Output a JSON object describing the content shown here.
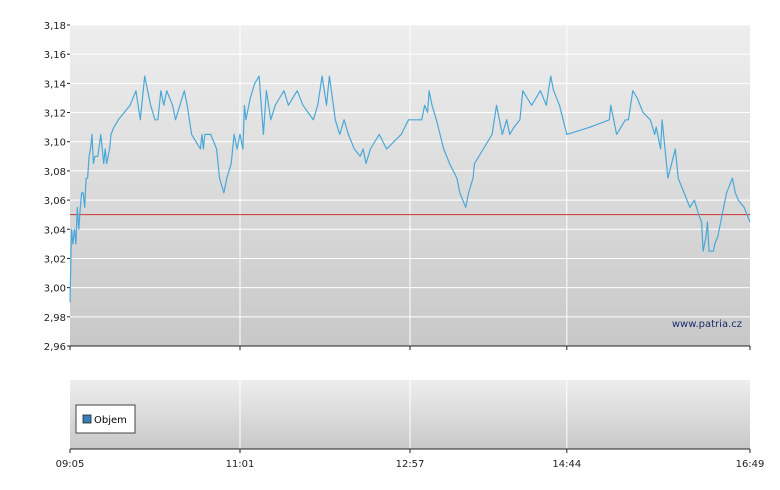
{
  "chart_data": [
    {
      "type": "line",
      "title": "",
      "xlabel": "",
      "ylabel": "",
      "ylim": [
        2.96,
        3.18
      ],
      "yticks": [
        "3,18",
        "3,16",
        "3,14",
        "3,12",
        "3,10",
        "3,08",
        "3,06",
        "3,04",
        "3,02",
        "3,00",
        "2,98",
        "2,96"
      ],
      "yticks_values": [
        3.18,
        3.16,
        3.14,
        3.12,
        3.1,
        3.08,
        3.06,
        3.04,
        3.02,
        3.0,
        2.98,
        2.96
      ],
      "xlim": [
        "09:05",
        "16:49"
      ],
      "xticks": [
        "09:05",
        "11:01",
        "12:57",
        "14:44",
        "16:49"
      ],
      "grid": true,
      "reference_line": {
        "value": 3.05,
        "color": "#cc3333"
      },
      "watermark": "www.patria.cz",
      "series": [
        {
          "color": "#4aa8d8",
          "points": [
            [
              "09:05",
              2.99
            ],
            [
              "09:06",
              3.04
            ],
            [
              "09:07",
              3.03
            ],
            [
              "09:08",
              3.04
            ],
            [
              "09:09",
              3.03
            ],
            [
              "09:10",
              3.055
            ],
            [
              "09:11",
              3.04
            ],
            [
              "09:12",
              3.055
            ],
            [
              "09:13",
              3.065
            ],
            [
              "09:14",
              3.065
            ],
            [
              "09:15",
              3.055
            ],
            [
              "09:16",
              3.075
            ],
            [
              "09:17",
              3.075
            ],
            [
              "09:18",
              3.09
            ],
            [
              "09:19",
              3.095
            ],
            [
              "09:20",
              3.105
            ],
            [
              "09:21",
              3.085
            ],
            [
              "09:22",
              3.09
            ],
            [
              "09:24",
              3.09
            ],
            [
              "09:26",
              3.105
            ],
            [
              "09:28",
              3.085
            ],
            [
              "09:29",
              3.095
            ],
            [
              "09:30",
              3.085
            ],
            [
              "09:32",
              3.095
            ],
            [
              "09:33",
              3.105
            ],
            [
              "09:35",
              3.11
            ],
            [
              "09:38",
              3.115
            ],
            [
              "09:42",
              3.12
            ],
            [
              "09:46",
              3.125
            ],
            [
              "09:50",
              3.135
            ],
            [
              "09:53",
              3.115
            ],
            [
              "09:56",
              3.145
            ],
            [
              "10:00",
              3.125
            ],
            [
              "10:03",
              3.115
            ],
            [
              "10:05",
              3.115
            ],
            [
              "10:07",
              3.135
            ],
            [
              "10:09",
              3.125
            ],
            [
              "10:11",
              3.135
            ],
            [
              "10:15",
              3.125
            ],
            [
              "10:17",
              3.115
            ],
            [
              "10:20",
              3.125
            ],
            [
              "10:23",
              3.135
            ],
            [
              "10:25",
              3.125
            ],
            [
              "10:28",
              3.105
            ],
            [
              "10:31",
              3.1
            ],
            [
              "10:34",
              3.095
            ],
            [
              "10:35",
              3.105
            ],
            [
              "10:36",
              3.095
            ],
            [
              "10:37",
              3.105
            ],
            [
              "10:41",
              3.105
            ],
            [
              "10:45",
              3.095
            ],
            [
              "10:47",
              3.075
            ],
            [
              "10:50",
              3.065
            ],
            [
              "10:52",
              3.075
            ],
            [
              "10:55",
              3.085
            ],
            [
              "10:57",
              3.105
            ],
            [
              "10:59",
              3.095
            ],
            [
              "11:01",
              3.105
            ],
            [
              "11:03",
              3.095
            ],
            [
              "11:04",
              3.125
            ],
            [
              "11:05",
              3.115
            ],
            [
              "11:08",
              3.13
            ],
            [
              "11:11",
              3.14
            ],
            [
              "11:14",
              3.145
            ],
            [
              "11:17",
              3.105
            ],
            [
              "11:19",
              3.135
            ],
            [
              "11:22",
              3.115
            ],
            [
              "11:25",
              3.125
            ],
            [
              "11:28",
              3.13
            ],
            [
              "11:31",
              3.135
            ],
            [
              "11:34",
              3.125
            ],
            [
              "11:40",
              3.135
            ],
            [
              "11:44",
              3.125
            ],
            [
              "11:51",
              3.115
            ],
            [
              "11:54",
              3.125
            ],
            [
              "11:57",
              3.145
            ],
            [
              "12:00",
              3.125
            ],
            [
              "12:02",
              3.145
            ],
            [
              "12:06",
              3.115
            ],
            [
              "12:09",
              3.105
            ],
            [
              "12:12",
              3.115
            ],
            [
              "12:15",
              3.105
            ],
            [
              "12:19",
              3.095
            ],
            [
              "12:23",
              3.09
            ],
            [
              "12:25",
              3.095
            ],
            [
              "12:27",
              3.085
            ],
            [
              "12:30",
              3.095
            ],
            [
              "12:36",
              3.105
            ],
            [
              "12:41",
              3.095
            ],
            [
              "12:46",
              3.1
            ],
            [
              "12:51",
              3.105
            ],
            [
              "12:56",
              3.115
            ],
            [
              "13:00",
              3.115
            ],
            [
              "13:05",
              3.115
            ],
            [
              "13:07",
              3.125
            ],
            [
              "13:09",
              3.12
            ],
            [
              "13:10",
              3.135
            ],
            [
              "13:12",
              3.125
            ],
            [
              "13:15",
              3.115
            ],
            [
              "13:20",
              3.095
            ],
            [
              "13:24",
              3.085
            ],
            [
              "13:29",
              3.075
            ],
            [
              "13:31",
              3.065
            ],
            [
              "13:35",
              3.055
            ],
            [
              "13:37",
              3.065
            ],
            [
              "13:40",
              3.075
            ],
            [
              "13:41",
              3.085
            ],
            [
              "13:47",
              3.095
            ],
            [
              "13:53",
              3.105
            ],
            [
              "13:56",
              3.125
            ],
            [
              "13:58",
              3.115
            ],
            [
              "14:00",
              3.105
            ],
            [
              "14:03",
              3.115
            ],
            [
              "14:05",
              3.105
            ],
            [
              "14:08",
              3.11
            ],
            [
              "14:12",
              3.115
            ],
            [
              "14:14",
              3.135
            ],
            [
              "14:17",
              3.13
            ],
            [
              "14:20",
              3.125
            ],
            [
              "14:23",
              3.13
            ],
            [
              "14:26",
              3.135
            ],
            [
              "14:30",
              3.125
            ],
            [
              "14:33",
              3.145
            ],
            [
              "14:35",
              3.135
            ],
            [
              "14:39",
              3.125
            ],
            [
              "14:44",
              3.105
            ],
            [
              "15:00",
              3.11
            ],
            [
              "15:13",
              3.115
            ],
            [
              "15:14",
              3.125
            ],
            [
              "15:16",
              3.115
            ],
            [
              "15:18",
              3.105
            ],
            [
              "15:24",
              3.115
            ],
            [
              "15:26",
              3.115
            ],
            [
              "15:29",
              3.135
            ],
            [
              "15:32",
              3.13
            ],
            [
              "15:36",
              3.12
            ],
            [
              "15:41",
              3.115
            ],
            [
              "15:44",
              3.105
            ],
            [
              "15:45",
              3.11
            ],
            [
              "15:48",
              3.095
            ],
            [
              "15:49",
              3.115
            ],
            [
              "15:53",
              3.075
            ],
            [
              "15:58",
              3.095
            ],
            [
              "16:00",
              3.075
            ],
            [
              "16:08",
              3.055
            ],
            [
              "16:11",
              3.06
            ],
            [
              "16:14",
              3.05
            ],
            [
              "16:16",
              3.045
            ],
            [
              "16:17",
              3.025
            ],
            [
              "16:19",
              3.035
            ],
            [
              "16:20",
              3.045
            ],
            [
              "16:21",
              3.025
            ],
            [
              "16:24",
              3.025
            ],
            [
              "16:25",
              3.03
            ],
            [
              "16:27",
              3.035
            ],
            [
              "16:29",
              3.045
            ],
            [
              "16:31",
              3.055
            ],
            [
              "16:33",
              3.065
            ],
            [
              "16:35",
              3.07
            ],
            [
              "16:37",
              3.075
            ],
            [
              "16:39",
              3.065
            ],
            [
              "16:41",
              3.06
            ],
            [
              "16:45",
              3.055
            ],
            [
              "16:49",
              3.045
            ]
          ]
        }
      ]
    },
    {
      "type": "bar",
      "title": "",
      "xlim": [
        "09:05",
        "16:49"
      ],
      "xticks": [
        "09:05",
        "11:01",
        "12:57",
        "14:44",
        "16:49"
      ],
      "grid": true,
      "legend": {
        "position": "left",
        "entries": [
          {
            "label": "Objem",
            "color": "#3a7fb5"
          }
        ]
      },
      "values": []
    }
  ]
}
